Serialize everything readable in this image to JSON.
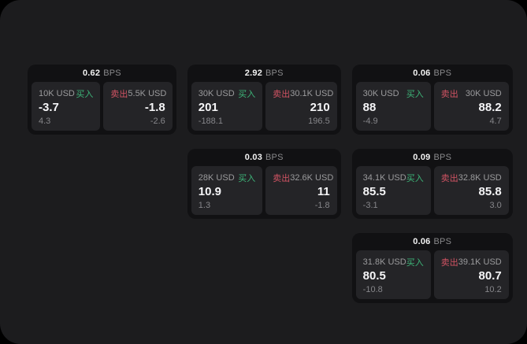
{
  "labels": {
    "bps_unit": "BPS",
    "buy": "买入",
    "sell": "卖出"
  },
  "colors": {
    "buy": "#3db478",
    "sell": "#d15363",
    "panel_bg": "#1c1c1e",
    "card_bg": "#111113",
    "tile_bg": "#242427"
  },
  "cards": [
    {
      "bps": "0.62",
      "col": 1,
      "row": 1,
      "buy": {
        "size": "10K USD",
        "value": "-3.7",
        "delta": "4.3"
      },
      "sell": {
        "size": "5.5K USD",
        "value": "-1.8",
        "delta": "-2.6"
      }
    },
    {
      "bps": "2.92",
      "col": 2,
      "row": 1,
      "buy": {
        "size": "30K USD",
        "value": "201",
        "delta": "-188.1"
      },
      "sell": {
        "size": "30.1K USD",
        "value": "210",
        "delta": "196.5"
      }
    },
    {
      "bps": "0.06",
      "col": 3,
      "row": 1,
      "buy": {
        "size": "30K USD",
        "value": "88",
        "delta": "-4.9"
      },
      "sell": {
        "size": "30K USD",
        "value": "88.2",
        "delta": "4.7"
      }
    },
    {
      "bps": "0.03",
      "col": 2,
      "row": 2,
      "buy": {
        "size": "28K USD",
        "value": "10.9",
        "delta": "1.3"
      },
      "sell": {
        "size": "32.6K USD",
        "value": "11",
        "delta": "-1.8"
      }
    },
    {
      "bps": "0.09",
      "col": 3,
      "row": 2,
      "buy": {
        "size": "34.1K USD",
        "value": "85.5",
        "delta": "-3.1"
      },
      "sell": {
        "size": "32.8K USD",
        "value": "85.8",
        "delta": "3.0"
      }
    },
    {
      "bps": "0.06",
      "col": 3,
      "row": 3,
      "buy": {
        "size": "31.8K USD",
        "value": "80.5",
        "delta": "-10.8"
      },
      "sell": {
        "size": "39.1K USD",
        "value": "80.7",
        "delta": "10.2"
      }
    }
  ]
}
